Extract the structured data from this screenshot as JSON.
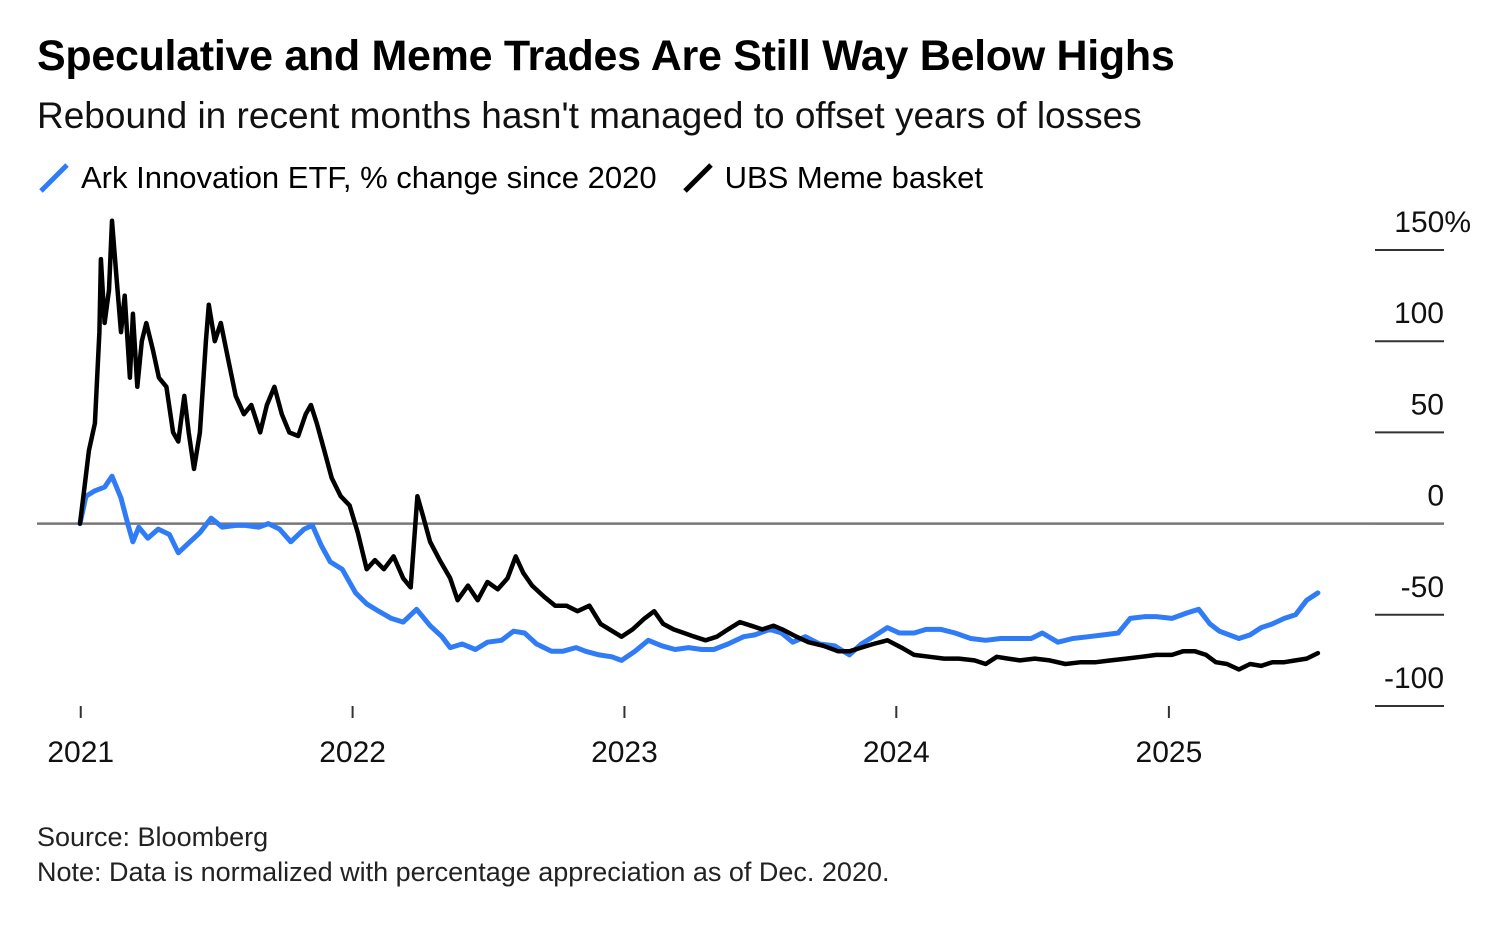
{
  "title": "Speculative and Meme Trades Are Still Way Below Highs",
  "subtitle": "Rebound in recent months hasn't managed to offset years of losses",
  "source": "Source: Bloomberg",
  "note": "Note: Data is normalized with percentage appreciation as of Dec. 2020.",
  "chart_data": {
    "type": "line",
    "x_axis": {
      "type": "date",
      "range": [
        "2020-12-31",
        "2025-12-31"
      ],
      "tick_labels": [
        "2021",
        "2022",
        "2023",
        "2024",
        "2025"
      ],
      "ticks": [
        "2021-01-01",
        "2022-01-01",
        "2023-01-01",
        "2024-01-01",
        "2025-01-01"
      ]
    },
    "y_axis": {
      "position": "right",
      "range": [
        -100,
        150
      ],
      "tick_values": [
        150,
        100,
        50,
        0,
        -50,
        -100
      ],
      "tick_labels": [
        "150%",
        "100",
        "50",
        "0",
        "-50",
        "-100"
      ]
    },
    "zero_line": true,
    "grid": false,
    "legend_placement": "top-left",
    "series": [
      {
        "name": "Ark Innovation ETF, % change since 2020",
        "color": "#2f7cf6",
        "points": [
          [
            "2020-12-31",
            0
          ],
          [
            "2021-01-08",
            15
          ],
          [
            "2021-01-20",
            18
          ],
          [
            "2021-02-02",
            20
          ],
          [
            "2021-02-12",
            26
          ],
          [
            "2021-02-24",
            14
          ],
          [
            "2021-03-05",
            0
          ],
          [
            "2021-03-12",
            -10
          ],
          [
            "2021-03-20",
            -2
          ],
          [
            "2021-04-01",
            -8
          ],
          [
            "2021-04-15",
            -3
          ],
          [
            "2021-04-30",
            -6
          ],
          [
            "2021-05-12",
            -16
          ],
          [
            "2021-05-25",
            -11
          ],
          [
            "2021-06-10",
            -5
          ],
          [
            "2021-06-25",
            3
          ],
          [
            "2021-07-10",
            -2
          ],
          [
            "2021-07-28",
            -1
          ],
          [
            "2021-08-10",
            -1
          ],
          [
            "2021-08-28",
            -2
          ],
          [
            "2021-09-10",
            0
          ],
          [
            "2021-09-25",
            -3
          ],
          [
            "2021-10-10",
            -10
          ],
          [
            "2021-10-28",
            -3
          ],
          [
            "2021-11-08",
            -1
          ],
          [
            "2021-11-20",
            -12
          ],
          [
            "2021-12-02",
            -21
          ],
          [
            "2021-12-18",
            -25
          ],
          [
            "2022-01-05",
            -38
          ],
          [
            "2022-01-20",
            -44
          ],
          [
            "2022-02-05",
            -48
          ],
          [
            "2022-02-22",
            -52
          ],
          [
            "2022-03-10",
            -54
          ],
          [
            "2022-03-28",
            -47
          ],
          [
            "2022-04-15",
            -56
          ],
          [
            "2022-05-01",
            -62
          ],
          [
            "2022-05-12",
            -68
          ],
          [
            "2022-05-28",
            -66
          ],
          [
            "2022-06-15",
            -69
          ],
          [
            "2022-07-01",
            -65
          ],
          [
            "2022-07-20",
            -64
          ],
          [
            "2022-08-05",
            -59
          ],
          [
            "2022-08-20",
            -60
          ],
          [
            "2022-09-05",
            -66
          ],
          [
            "2022-09-25",
            -70
          ],
          [
            "2022-10-10",
            -70
          ],
          [
            "2022-10-28",
            -68
          ],
          [
            "2022-11-10",
            -70
          ],
          [
            "2022-11-28",
            -72
          ],
          [
            "2022-12-15",
            -73
          ],
          [
            "2022-12-28",
            -75
          ],
          [
            "2023-01-15",
            -70
          ],
          [
            "2023-02-02",
            -64
          ],
          [
            "2023-02-20",
            -67
          ],
          [
            "2023-03-10",
            -69
          ],
          [
            "2023-03-28",
            -68
          ],
          [
            "2023-04-15",
            -69
          ],
          [
            "2023-05-01",
            -69
          ],
          [
            "2023-05-20",
            -66
          ],
          [
            "2023-06-10",
            -62
          ],
          [
            "2023-06-25",
            -61
          ],
          [
            "2023-07-15",
            -58
          ],
          [
            "2023-07-31",
            -60
          ],
          [
            "2023-08-15",
            -65
          ],
          [
            "2023-09-01",
            -62
          ],
          [
            "2023-09-20",
            -66
          ],
          [
            "2023-10-10",
            -67
          ],
          [
            "2023-10-30",
            -72
          ],
          [
            "2023-11-15",
            -66
          ],
          [
            "2023-12-01",
            -62
          ],
          [
            "2023-12-20",
            -57
          ],
          [
            "2024-01-05",
            -60
          ],
          [
            "2024-01-25",
            -60
          ],
          [
            "2024-02-10",
            -58
          ],
          [
            "2024-03-01",
            -58
          ],
          [
            "2024-03-20",
            -60
          ],
          [
            "2024-04-10",
            -63
          ],
          [
            "2024-04-30",
            -64
          ],
          [
            "2024-05-20",
            -63
          ],
          [
            "2024-06-10",
            -63
          ],
          [
            "2024-06-30",
            -63
          ],
          [
            "2024-07-15",
            -60
          ],
          [
            "2024-08-05",
            -65
          ],
          [
            "2024-08-25",
            -63
          ],
          [
            "2024-09-15",
            -62
          ],
          [
            "2024-10-05",
            -61
          ],
          [
            "2024-10-25",
            -60
          ],
          [
            "2024-11-10",
            -52
          ],
          [
            "2024-11-30",
            -51
          ],
          [
            "2024-12-15",
            -51
          ],
          [
            "2025-01-05",
            -52
          ],
          [
            "2025-01-25",
            -49
          ],
          [
            "2025-02-10",
            -47
          ],
          [
            "2025-02-25",
            -55
          ],
          [
            "2025-03-10",
            -59
          ],
          [
            "2025-04-05",
            -63
          ],
          [
            "2025-04-20",
            -61
          ],
          [
            "2025-05-05",
            -57
          ],
          [
            "2025-05-20",
            -55
          ],
          [
            "2025-06-05",
            -52
          ],
          [
            "2025-06-20",
            -50
          ],
          [
            "2025-07-05",
            -42
          ],
          [
            "2025-07-20",
            -38
          ]
        ]
      },
      {
        "name": "UBS Meme basket",
        "color": "#000000",
        "points": [
          [
            "2020-12-31",
            0
          ],
          [
            "2021-01-06",
            20
          ],
          [
            "2021-01-12",
            40
          ],
          [
            "2021-01-20",
            55
          ],
          [
            "2021-01-26",
            105
          ],
          [
            "2021-01-28",
            145
          ],
          [
            "2021-02-02",
            110
          ],
          [
            "2021-02-08",
            128
          ],
          [
            "2021-02-12",
            166
          ],
          [
            "2021-02-18",
            135
          ],
          [
            "2021-02-24",
            105
          ],
          [
            "2021-03-01",
            125
          ],
          [
            "2021-03-08",
            80
          ],
          [
            "2021-03-12",
            115
          ],
          [
            "2021-03-18",
            75
          ],
          [
            "2021-03-24",
            100
          ],
          [
            "2021-03-30",
            110
          ],
          [
            "2021-04-08",
            95
          ],
          [
            "2021-04-16",
            80
          ],
          [
            "2021-04-26",
            75
          ],
          [
            "2021-05-05",
            50
          ],
          [
            "2021-05-12",
            45
          ],
          [
            "2021-05-20",
            70
          ],
          [
            "2021-05-26",
            50
          ],
          [
            "2021-06-02",
            30
          ],
          [
            "2021-06-10",
            50
          ],
          [
            "2021-06-18",
            100
          ],
          [
            "2021-06-22",
            120
          ],
          [
            "2021-06-30",
            100
          ],
          [
            "2021-07-08",
            110
          ],
          [
            "2021-07-18",
            90
          ],
          [
            "2021-07-28",
            70
          ],
          [
            "2021-08-08",
            60
          ],
          [
            "2021-08-18",
            65
          ],
          [
            "2021-08-30",
            50
          ],
          [
            "2021-09-08",
            65
          ],
          [
            "2021-09-18",
            75
          ],
          [
            "2021-09-28",
            60
          ],
          [
            "2021-10-08",
            50
          ],
          [
            "2021-10-20",
            48
          ],
          [
            "2021-10-30",
            60
          ],
          [
            "2021-11-06",
            65
          ],
          [
            "2021-11-14",
            55
          ],
          [
            "2021-11-24",
            40
          ],
          [
            "2021-12-04",
            25
          ],
          [
            "2021-12-16",
            15
          ],
          [
            "2021-12-28",
            10
          ],
          [
            "2022-01-08",
            -5
          ],
          [
            "2022-01-20",
            -25
          ],
          [
            "2022-01-31",
            -20
          ],
          [
            "2022-02-12",
            -25
          ],
          [
            "2022-02-25",
            -18
          ],
          [
            "2022-03-10",
            -30
          ],
          [
            "2022-03-20",
            -35
          ],
          [
            "2022-03-29",
            15
          ],
          [
            "2022-04-05",
            5
          ],
          [
            "2022-04-15",
            -10
          ],
          [
            "2022-04-28",
            -20
          ],
          [
            "2022-05-12",
            -30
          ],
          [
            "2022-05-22",
            -42
          ],
          [
            "2022-06-05",
            -34
          ],
          [
            "2022-06-18",
            -42
          ],
          [
            "2022-07-01",
            -32
          ],
          [
            "2022-07-15",
            -36
          ],
          [
            "2022-07-28",
            -30
          ],
          [
            "2022-08-08",
            -18
          ],
          [
            "2022-08-18",
            -27
          ],
          [
            "2022-08-30",
            -34
          ],
          [
            "2022-09-15",
            -40
          ],
          [
            "2022-09-30",
            -45
          ],
          [
            "2022-10-15",
            -45
          ],
          [
            "2022-10-30",
            -48
          ],
          [
            "2022-11-15",
            -45
          ],
          [
            "2022-11-30",
            -55
          ],
          [
            "2022-12-12",
            -58
          ],
          [
            "2022-12-28",
            -62
          ],
          [
            "2023-01-12",
            -58
          ],
          [
            "2023-01-28",
            -52
          ],
          [
            "2023-02-10",
            -48
          ],
          [
            "2023-02-22",
            -55
          ],
          [
            "2023-03-08",
            -58
          ],
          [
            "2023-03-22",
            -60
          ],
          [
            "2023-04-05",
            -62
          ],
          [
            "2023-04-20",
            -64
          ],
          [
            "2023-05-05",
            -62
          ],
          [
            "2023-05-20",
            -58
          ],
          [
            "2023-06-05",
            -54
          ],
          [
            "2023-06-20",
            -56
          ],
          [
            "2023-07-05",
            -58
          ],
          [
            "2023-07-20",
            -56
          ],
          [
            "2023-08-01",
            -58
          ],
          [
            "2023-08-20",
            -62
          ],
          [
            "2023-09-05",
            -65
          ],
          [
            "2023-09-25",
            -67
          ],
          [
            "2023-10-15",
            -70
          ],
          [
            "2023-10-30",
            -70
          ],
          [
            "2023-11-15",
            -68
          ],
          [
            "2023-12-01",
            -66
          ],
          [
            "2023-12-20",
            -64
          ],
          [
            "2024-01-08",
            -68
          ],
          [
            "2024-01-25",
            -72
          ],
          [
            "2024-02-15",
            -73
          ],
          [
            "2024-03-05",
            -74
          ],
          [
            "2024-03-25",
            -74
          ],
          [
            "2024-04-15",
            -75
          ],
          [
            "2024-04-30",
            -77
          ],
          [
            "2024-05-15",
            -73
          ],
          [
            "2024-05-30",
            -74
          ],
          [
            "2024-06-15",
            -75
          ],
          [
            "2024-07-05",
            -74
          ],
          [
            "2024-07-25",
            -75
          ],
          [
            "2024-08-15",
            -77
          ],
          [
            "2024-09-05",
            -76
          ],
          [
            "2024-09-25",
            -76
          ],
          [
            "2024-10-15",
            -75
          ],
          [
            "2024-11-05",
            -74
          ],
          [
            "2024-11-25",
            -73
          ],
          [
            "2024-12-15",
            -72
          ],
          [
            "2025-01-05",
            -72
          ],
          [
            "2025-01-20",
            -70
          ],
          [
            "2025-02-05",
            -70
          ],
          [
            "2025-02-20",
            -72
          ],
          [
            "2025-03-05",
            -76
          ],
          [
            "2025-03-20",
            -77
          ],
          [
            "2025-04-05",
            -80
          ],
          [
            "2025-04-20",
            -77
          ],
          [
            "2025-05-05",
            -78
          ],
          [
            "2025-05-20",
            -76
          ],
          [
            "2025-06-05",
            -76
          ],
          [
            "2025-06-20",
            -75
          ],
          [
            "2025-07-05",
            -74
          ],
          [
            "2025-07-20",
            -71
          ]
        ]
      }
    ]
  }
}
